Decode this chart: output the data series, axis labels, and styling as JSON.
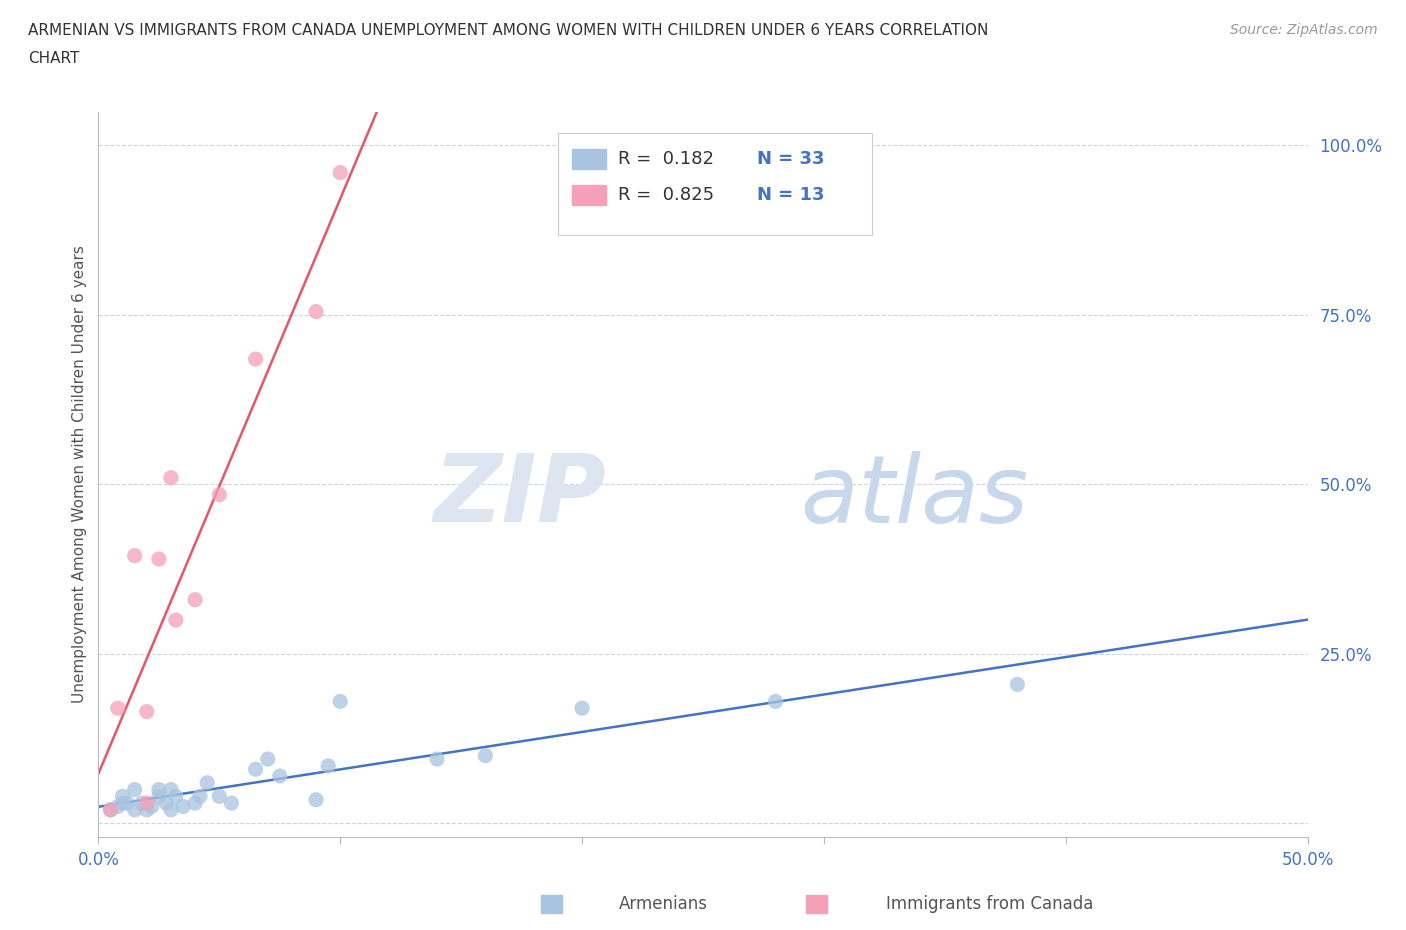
{
  "title_line1": "ARMENIAN VS IMMIGRANTS FROM CANADA UNEMPLOYMENT AMONG WOMEN WITH CHILDREN UNDER 6 YEARS CORRELATION",
  "title_line2": "CHART",
  "source": "Source: ZipAtlas.com",
  "ylabel": "Unemployment Among Women with Children Under 6 years",
  "xlabel_armenians": "Armenians",
  "xlabel_canada": "Immigrants from Canada",
  "watermark_zip": "ZIP",
  "watermark_atlas": "atlas",
  "xlim": [
    0.0,
    0.5
  ],
  "ylim": [
    -0.02,
    1.05
  ],
  "xtick_positions": [
    0.0,
    0.1,
    0.2,
    0.3,
    0.4,
    0.5
  ],
  "xtick_labels": [
    "0.0%",
    "",
    "",
    "",
    "",
    "50.0%"
  ],
  "ytick_positions": [
    0.0,
    0.25,
    0.5,
    0.75,
    1.0
  ],
  "ytick_labels": [
    "",
    "25.0%",
    "50.0%",
    "75.0%",
    "100.0%"
  ],
  "R_armenians": 0.182,
  "N_armenians": 33,
  "R_canada": 0.825,
  "N_canada": 13,
  "armenian_color": "#a8c4e0",
  "canada_color": "#f4a0b8",
  "trendline_armenian_color": "#4472c4",
  "trendline_canada_color": "#e8546a",
  "background_color": "#ffffff",
  "grid_color": "#c8d4e8",
  "title_color": "#333333",
  "source_color": "#999999",
  "legend_R_color": "#333333",
  "legend_N_color": "#4472c4",
  "armenians_x": [
    0.005,
    0.008,
    0.01,
    0.01,
    0.012,
    0.015,
    0.015,
    0.018,
    0.02,
    0.022,
    0.025,
    0.025,
    0.028,
    0.03,
    0.03,
    0.032,
    0.035,
    0.04,
    0.042,
    0.045,
    0.05,
    0.055,
    0.065,
    0.07,
    0.075,
    0.09,
    0.095,
    0.1,
    0.14,
    0.16,
    0.2,
    0.28,
    0.38
  ],
  "armenians_y": [
    0.02,
    0.025,
    0.03,
    0.04,
    0.03,
    0.02,
    0.05,
    0.03,
    0.02,
    0.025,
    0.04,
    0.05,
    0.03,
    0.02,
    0.05,
    0.04,
    0.025,
    0.03,
    0.04,
    0.06,
    0.04,
    0.03,
    0.08,
    0.095,
    0.07,
    0.035,
    0.085,
    0.18,
    0.095,
    0.1,
    0.17,
    0.18,
    0.205
  ],
  "canada_x": [
    0.005,
    0.008,
    0.015,
    0.02,
    0.02,
    0.025,
    0.03,
    0.032,
    0.04,
    0.05,
    0.065,
    0.09,
    0.1
  ],
  "canada_y": [
    0.02,
    0.17,
    0.395,
    0.03,
    0.165,
    0.39,
    0.51,
    0.3,
    0.33,
    0.485,
    0.685,
    0.755,
    0.96
  ],
  "trendline_arm_x0": 0.0,
  "trendline_arm_x1": 0.5,
  "trendline_can_x0": 0.0,
  "trendline_can_x1": 0.14
}
